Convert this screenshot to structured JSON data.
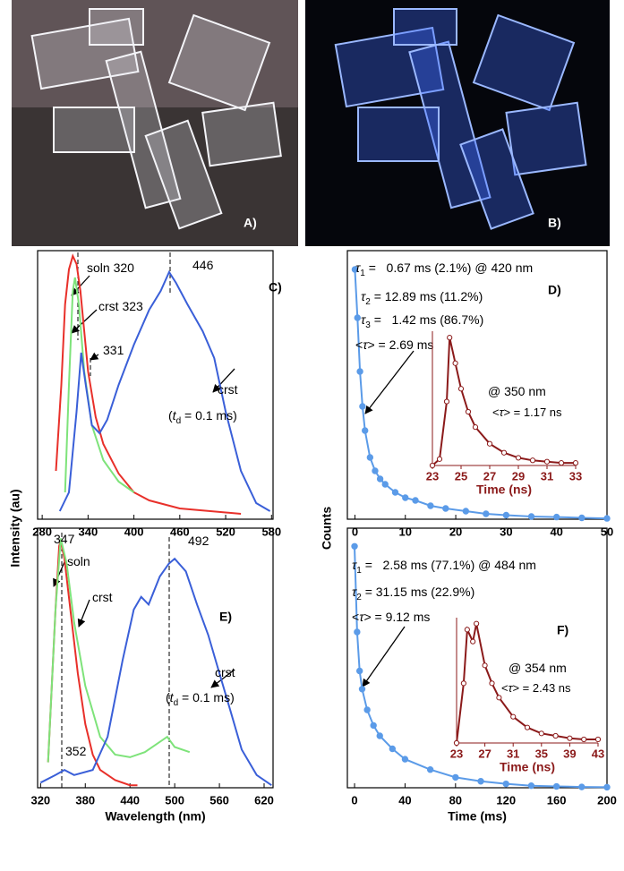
{
  "photos": [
    {
      "label": "A)"
    },
    {
      "label": "B)"
    }
  ],
  "chart_data": [
    {
      "type": "line",
      "title": "C)",
      "ylabel": "Intensity (au)",
      "xlim": [
        274,
        582
      ],
      "ylim": [
        0,
        1
      ],
      "xticks": [
        280,
        340,
        400,
        460,
        520,
        580
      ],
      "series": [
        {
          "color": "#e8302a",
          "x": [
            298,
            305,
            310,
            315,
            320,
            325,
            330,
            335,
            340,
            350,
            360,
            380,
            400,
            420,
            460,
            500,
            540
          ],
          "values": [
            0.18,
            0.5,
            0.8,
            0.93,
            0.98,
            0.95,
            0.85,
            0.7,
            0.55,
            0.38,
            0.28,
            0.17,
            0.1,
            0.07,
            0.04,
            0.03,
            0.02
          ]
        },
        {
          "color": "#7ee37a",
          "x": [
            310,
            315,
            320,
            323,
            328,
            335,
            345,
            360,
            380,
            400
          ],
          "values": [
            0.1,
            0.5,
            0.85,
            0.9,
            0.8,
            0.55,
            0.35,
            0.22,
            0.14,
            0.1
          ]
        },
        {
          "color": "#3a5fd8",
          "x": [
            303,
            315,
            325,
            331,
            337,
            345,
            355,
            365,
            380,
            400,
            420,
            435,
            446,
            455,
            470,
            490,
            505,
            520,
            540,
            560,
            578
          ],
          "values": [
            0.03,
            0.1,
            0.4,
            0.62,
            0.5,
            0.35,
            0.32,
            0.37,
            0.5,
            0.65,
            0.78,
            0.85,
            0.92,
            0.88,
            0.8,
            0.7,
            0.6,
            0.4,
            0.18,
            0.06,
            0.03
          ]
        }
      ],
      "annotations": [
        [
          {
            "text": "soln 320"
          }
        ],
        [
          {
            "text": "crst 323"
          }
        ],
        [
          {
            "text": "331"
          }
        ],
        [
          {
            "text": "446"
          }
        ],
        [
          {
            "text": "crst"
          }
        ],
        [
          {
            "text": "("
          },
          {
            "text": "t",
            "style": "italic"
          },
          {
            "text": "d",
            "style": "sub"
          },
          {
            "text": " = 0.1 ms)"
          }
        ]
      ]
    },
    {
      "type": "line",
      "title": "D)",
      "ylabel": "Counts",
      "xlim": [
        -1.5,
        50
      ],
      "ylim": [
        0,
        1
      ],
      "xticks": [
        0,
        10,
        20,
        30,
        40,
        50
      ],
      "series": [
        {
          "color": "#5b9be8",
          "marker": "filled",
          "x": [
            0,
            0.5,
            1,
            1.5,
            2,
            3,
            4,
            5,
            6,
            8,
            10,
            12,
            15,
            18,
            22,
            26,
            30,
            35,
            40,
            45,
            50
          ],
          "values": [
            0.93,
            0.75,
            0.55,
            0.42,
            0.33,
            0.23,
            0.18,
            0.15,
            0.13,
            0.1,
            0.08,
            0.07,
            0.05,
            0.04,
            0.03,
            0.02,
            0.015,
            0.01,
            0.008,
            0.005,
            0.003
          ]
        }
      ],
      "annotations": [
        [
          {
            "text": "τ",
            "style": "italic"
          },
          {
            "text": "1",
            "style": "sub"
          },
          {
            "text": " =   0.67 ms (2.1%) @ 420 nm"
          }
        ],
        [
          {
            "text": "τ",
            "style": "italic"
          },
          {
            "text": "2",
            "style": "sub"
          },
          {
            "text": " = 12.89 ms (11.2%)"
          }
        ],
        [
          {
            "text": "τ",
            "style": "italic"
          },
          {
            "text": "3",
            "style": "sub"
          },
          {
            "text": " =   1.42 ms (86.7%)"
          }
        ],
        [
          {
            "text": "<"
          },
          {
            "text": "τ",
            "style": "italic"
          },
          {
            "text": "> = 2.69 ms"
          }
        ]
      ]
    },
    {
      "type": "line",
      "xlabel": "Time (ns)",
      "xlim": [
        23,
        33
      ],
      "ylim": [
        0,
        1.05
      ],
      "xticks": [
        23,
        25,
        27,
        29,
        31,
        33
      ],
      "series": [
        {
          "color": "#8b1a1a",
          "marker": "open",
          "x": [
            23,
            23.5,
            24,
            24.2,
            24.6,
            25,
            25.5,
            26,
            27,
            28,
            29,
            30,
            31,
            32,
            33
          ],
          "values": [
            0,
            0.05,
            0.5,
            1.0,
            0.8,
            0.6,
            0.42,
            0.3,
            0.17,
            0.1,
            0.06,
            0.04,
            0.03,
            0.02,
            0.02
          ]
        }
      ],
      "annotations": [
        [
          {
            "text": "@ 350 nm"
          }
        ],
        [
          {
            "text": "<"
          },
          {
            "text": "τ",
            "style": "italic"
          },
          {
            "text": "> = 1.17 ns"
          }
        ]
      ]
    },
    {
      "type": "line",
      "title": "E)",
      "xlabel": "Wavelength (nm)",
      "xlim": [
        316,
        632
      ],
      "ylim": [
        0,
        1.02
      ],
      "xticks": [
        320,
        380,
        440,
        500,
        560,
        620
      ],
      "series": [
        {
          "color": "#e8302a",
          "x": [
            330,
            340,
            345,
            347,
            352,
            360,
            370,
            380,
            390,
            400,
            420,
            440,
            450
          ],
          "values": [
            0.1,
            0.7,
            0.95,
            0.97,
            0.9,
            0.7,
            0.45,
            0.25,
            0.13,
            0.07,
            0.03,
            0.01,
            0.01
          ]
        },
        {
          "color": "#7ee37a",
          "x": [
            330,
            340,
            347,
            355,
            365,
            380,
            400,
            420,
            440,
            460,
            490,
            500,
            520
          ],
          "values": [
            0.1,
            0.7,
            0.98,
            0.88,
            0.65,
            0.4,
            0.2,
            0.13,
            0.12,
            0.14,
            0.2,
            0.16,
            0.14
          ]
        },
        {
          "color": "#3a5fd8",
          "x": [
            320,
            340,
            352,
            365,
            390,
            410,
            430,
            445,
            455,
            465,
            480,
            492,
            500,
            515,
            530,
            545,
            560,
            575,
            590,
            610,
            630
          ],
          "values": [
            0.02,
            0.05,
            0.07,
            0.05,
            0.07,
            0.2,
            0.5,
            0.7,
            0.75,
            0.72,
            0.83,
            0.88,
            0.9,
            0.85,
            0.72,
            0.6,
            0.45,
            0.3,
            0.15,
            0.05,
            0.01
          ]
        }
      ],
      "annotations": [
        [
          {
            "text": "347"
          }
        ],
        [
          {
            "text": "soln"
          }
        ],
        [
          {
            "text": "crst"
          }
        ],
        [
          {
            "text": "492"
          }
        ],
        [
          {
            "text": "crst"
          }
        ],
        [
          {
            "text": "("
          },
          {
            "text": "t",
            "style": "italic"
          },
          {
            "text": "d",
            "style": "sub"
          },
          {
            "text": " = 0.1 ms)"
          }
        ],
        [
          {
            "text": "352"
          }
        ]
      ]
    },
    {
      "type": "line",
      "title": "F)",
      "xlabel": "Time (ms)",
      "xlim": [
        -5.7,
        200
      ],
      "ylim": [
        0,
        1
      ],
      "xticks": [
        0,
        40,
        80,
        120,
        160,
        200
      ],
      "series": [
        {
          "color": "#5b9be8",
          "marker": "filled",
          "x": [
            0,
            2,
            4,
            6,
            10,
            15,
            20,
            30,
            40,
            60,
            80,
            100,
            120,
            140,
            160,
            180,
            200
          ],
          "values": [
            0.93,
            0.6,
            0.45,
            0.38,
            0.3,
            0.24,
            0.2,
            0.15,
            0.11,
            0.07,
            0.04,
            0.025,
            0.015,
            0.008,
            0.005,
            0.003,
            0.002
          ]
        }
      ],
      "annotations": [
        [
          {
            "text": "τ",
            "style": "italic"
          },
          {
            "text": "1",
            "style": "sub"
          },
          {
            "text": " =   2.58 ms (77.1%) @ 484 nm"
          }
        ],
        [
          {
            "text": "τ",
            "style": "italic"
          },
          {
            "text": "2",
            "style": "sub"
          },
          {
            "text": " = 31.15 ms (22.9%)"
          }
        ],
        [
          {
            "text": "<"
          },
          {
            "text": "τ",
            "style": "italic"
          },
          {
            "text": "> = 9.12 ms"
          }
        ]
      ]
    },
    {
      "type": "line",
      "xlabel": "Time (ns)",
      "xlim": [
        23,
        43
      ],
      "ylim": [
        0,
        1.05
      ],
      "xticks": [
        23,
        27,
        31,
        35,
        39,
        43
      ],
      "series": [
        {
          "color": "#8b1a1a",
          "marker": "open",
          "x": [
            23,
            24,
            24.5,
            25.3,
            25.8,
            27,
            28,
            29,
            31,
            33,
            35,
            37,
            39,
            41,
            43
          ],
          "values": [
            0,
            0.5,
            0.95,
            0.85,
            1.0,
            0.65,
            0.5,
            0.38,
            0.22,
            0.13,
            0.08,
            0.06,
            0.04,
            0.03,
            0.03
          ]
        }
      ],
      "annotations": [
        [
          {
            "text": "@ 354 nm"
          }
        ],
        [
          {
            "text": "<"
          },
          {
            "text": "τ",
            "style": "italic"
          },
          {
            "text": "> = 2.43 ns"
          }
        ]
      ]
    }
  ]
}
